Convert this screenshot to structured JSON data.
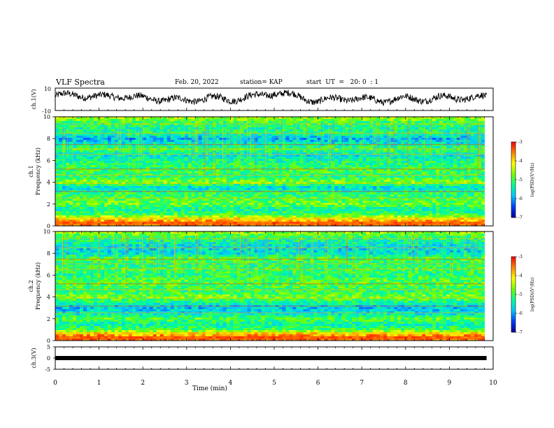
{
  "header": {
    "title": "VLF Spectra",
    "date": "Feb. 20, 2022",
    "station": "station= KAP",
    "start": "start  UT  =   20: 0  : 1"
  },
  "colorbar": {
    "label": "log(PSD)(V²/Hz)",
    "ticks": [
      "-3",
      "-4",
      "-5",
      "-6",
      "-7"
    ],
    "colors": [
      "#ff0000",
      "#ff8000",
      "#ffff00",
      "#80ff00",
      "#00ff80",
      "#00c8ff",
      "#0050ff",
      "#0000a0"
    ]
  },
  "chart_data": [
    {
      "type": "line",
      "panel": "ch1-waveform",
      "ylabel": "ch.1(V)",
      "ylim": [
        -10,
        10
      ],
      "yticks": [
        "10",
        "-10"
      ],
      "xlim": [
        0,
        10
      ],
      "trend_x": [
        0,
        0.5,
        1.0,
        1.5,
        2.0,
        2.5,
        3.0,
        3.5,
        4.0,
        4.5,
        5.0,
        5.5,
        6.0,
        6.5,
        7.0,
        7.5,
        8.0,
        8.5,
        9.0,
        9.5,
        9.8
      ],
      "trend_y": [
        3,
        4,
        2,
        3,
        1,
        0,
        -1,
        1,
        0,
        2,
        6,
        3,
        -2,
        1,
        0,
        -1,
        1,
        0,
        2,
        1,
        2
      ]
    },
    {
      "type": "heatmap",
      "panel": "ch1-spectrogram",
      "ylabel": "ch.1\nFrequency (kHz)",
      "ylim": [
        0,
        10
      ],
      "yticks": [
        "0",
        "2",
        "4",
        "6",
        "8",
        "10"
      ],
      "xlim": [
        0,
        9.85
      ],
      "band_freq_khz": [
        0.3,
        0.6,
        1.0,
        1.5,
        2.0,
        2.5,
        3.0,
        3.5,
        4.0,
        4.5,
        5.0,
        5.5,
        6.0,
        6.5,
        7.0,
        7.5,
        8.0,
        8.5,
        9.0,
        9.5,
        9.9
      ],
      "band_log_psd": [
        -3.6,
        -3.9,
        -4.9,
        -5.4,
        -4.8,
        -5.0,
        -5.1,
        -5.7,
        -4.6,
        -5.2,
        -5.0,
        -5.1,
        -5.3,
        -5.6,
        -5.0,
        -5.5,
        -5.9,
        -5.2,
        -5.3,
        -5.0,
        -4.6
      ]
    },
    {
      "type": "heatmap",
      "panel": "ch2-spectrogram",
      "ylabel": "ch.2\nFrequency (kHz)",
      "ylim": [
        0,
        10
      ],
      "yticks": [
        "0",
        "2",
        "4",
        "6",
        "8",
        "10"
      ],
      "xlim": [
        0,
        9.85
      ],
      "band_freq_khz": [
        0.3,
        0.6,
        1.0,
        1.5,
        2.0,
        2.5,
        3.0,
        3.5,
        4.0,
        4.5,
        5.0,
        5.5,
        6.0,
        6.5,
        7.0,
        7.5,
        8.0,
        8.5,
        9.0,
        9.5,
        9.9
      ],
      "band_log_psd": [
        -3.5,
        -3.8,
        -5.0,
        -5.4,
        -4.9,
        -5.6,
        -5.8,
        -5.3,
        -4.7,
        -5.1,
        -5.0,
        -4.9,
        -5.2,
        -5.0,
        -5.2,
        -4.9,
        -5.6,
        -5.7,
        -5.4,
        -5.1,
        -4.6
      ]
    },
    {
      "type": "line",
      "panel": "ch3-waveform",
      "ylabel": "ch.3(V)",
      "ylim": [
        -5,
        5
      ],
      "yticks": [
        "5",
        "0",
        "-5"
      ],
      "xlim": [
        0,
        10
      ],
      "xlabel": "Time (min)",
      "xticks": [
        "0",
        "1",
        "2",
        "3",
        "4",
        "5",
        "6",
        "7",
        "8",
        "9",
        "10"
      ],
      "x": [
        0,
        9.85
      ],
      "y": [
        0,
        0
      ]
    }
  ]
}
